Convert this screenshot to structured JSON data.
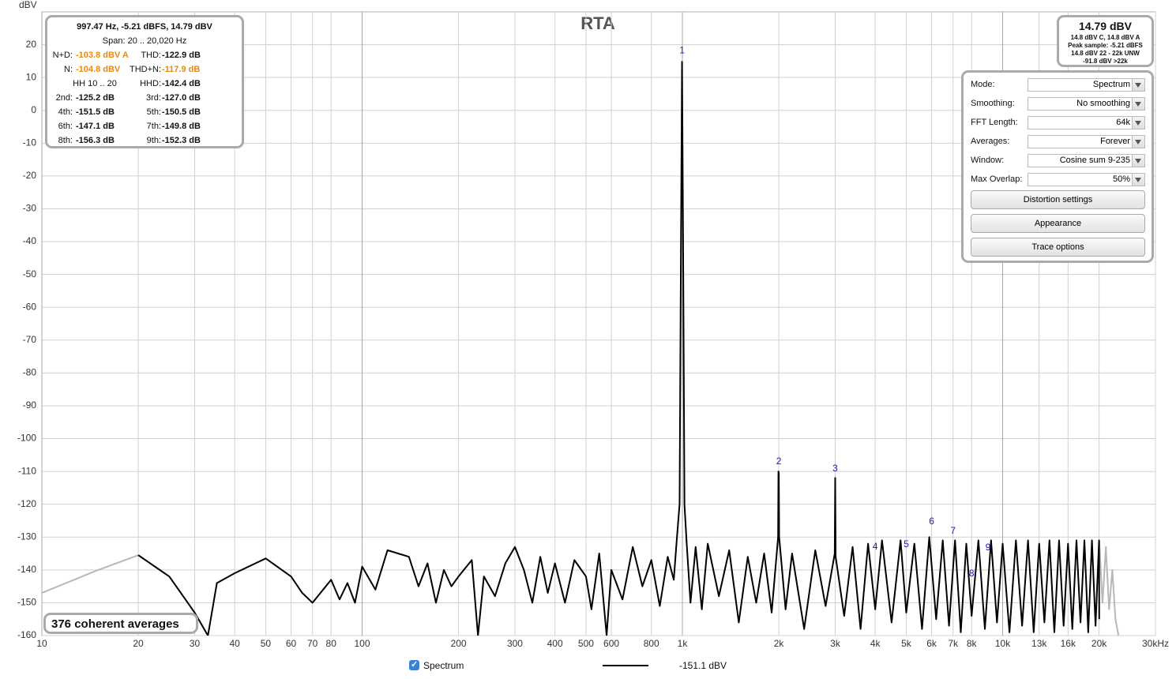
{
  "chart_data": {
    "type": "line",
    "title": "RTA",
    "y_label": "dBV",
    "xlim": [
      10,
      30000
    ],
    "ylim": [
      -160,
      30
    ],
    "log_x": true,
    "grid": true,
    "xticks": [
      10,
      20,
      30,
      40,
      50,
      60,
      70,
      80,
      100,
      200,
      300,
      400,
      500,
      600,
      800,
      {
        "value": 1000,
        "label": "1k"
      },
      {
        "value": 2000,
        "label": "2k"
      },
      {
        "value": 3000,
        "label": "3k"
      },
      {
        "value": 4000,
        "label": "4k"
      },
      {
        "value": 5000,
        "label": "5k"
      },
      {
        "value": 6000,
        "label": "6k"
      },
      {
        "value": 7000,
        "label": "7k"
      },
      {
        "value": 8000,
        "label": "8k"
      },
      {
        "value": 10000,
        "label": "10k"
      },
      {
        "value": 13000,
        "label": "13k"
      },
      {
        "value": 16000,
        "label": "16k"
      },
      {
        "value": 20000,
        "label": "20k"
      },
      {
        "value": 30000,
        "label": "30kHz"
      }
    ],
    "yticks": [
      20,
      10,
      0,
      -10,
      -20,
      -30,
      -40,
      -50,
      -60,
      -70,
      -80,
      -90,
      -100,
      -110,
      -120,
      -130,
      -140,
      -150,
      -160
    ],
    "series": [
      {
        "name": "Spectrum",
        "color": "#000000",
        "x": [
          20,
          25,
          30,
          33,
          35.2,
          40,
          50,
          60,
          65,
          70,
          80,
          85,
          90,
          95,
          100,
          110,
          120,
          140,
          150,
          160,
          170,
          180,
          190,
          200,
          220,
          230,
          240,
          260,
          280,
          300,
          320,
          340,
          360,
          380,
          400,
          430,
          460,
          500,
          520,
          550,
          580,
          600,
          650,
          700,
          750,
          800,
          850,
          900,
          940,
          960,
          980,
          990,
          997.47,
          1005,
          1015,
          1030,
          1060,
          1100,
          1150,
          1200,
          1300,
          1400,
          1500,
          1600,
          1700,
          1800,
          1900,
          1990,
          1995,
          2000,
          2005,
          2100,
          2200,
          2400,
          2600,
          2800,
          2990,
          3000,
          3010,
          3200,
          3400,
          3600,
          3800,
          4000,
          4200,
          4500,
          4800,
          5000,
          5300,
          5600,
          5900,
          6200,
          6500,
          6800,
          7100,
          7400,
          7700,
          8000,
          8400,
          8800,
          9200,
          9600,
          10000,
          10500,
          11000,
          11500,
          12000,
          12500,
          13000,
          13500,
          14000,
          14500,
          15000,
          15500,
          16000,
          16500,
          17000,
          17500,
          18000,
          18500,
          19000,
          19500,
          20000,
          20020
        ],
        "values": [
          -135.5,
          -142,
          -153,
          -160,
          -144,
          -141,
          -136.5,
          -142,
          -147,
          -150,
          -143,
          -149,
          -144,
          -150,
          -139,
          -146,
          -134,
          -136,
          -145,
          -138,
          -150,
          -140,
          -145,
          -142,
          -137,
          -160,
          -142,
          -148,
          -138,
          -133,
          -140,
          -150,
          -136,
          -147,
          -138,
          -150,
          -137,
          -142,
          -152,
          -135,
          -160,
          -140,
          -149,
          -133,
          -145,
          -137,
          -151,
          -136,
          -143,
          -131,
          -120,
          -40,
          14.79,
          -40,
          -120,
          -131,
          -150,
          -133,
          -152,
          -132,
          -148,
          -134,
          -156,
          -136,
          -150,
          -135,
          -153,
          -130,
          -110,
          -110.5,
          -130,
          -152,
          -135,
          -158,
          -134,
          -151,
          -135,
          -112,
          -136,
          -154,
          -133,
          -158,
          -132,
          -152,
          -131,
          -156,
          -131,
          -153,
          -132,
          -158,
          -130,
          -155,
          -131,
          -157,
          -131,
          -159,
          -132,
          -154,
          -131,
          -158,
          -131,
          -156,
          -132,
          -159,
          -131,
          -157,
          -131,
          -159,
          -132,
          -156,
          -131,
          -159,
          -131,
          -157,
          -132,
          -158,
          -131,
          -156,
          -131,
          -159,
          -131,
          -157,
          -131,
          -155
        ]
      },
      {
        "color": "#b8b8b8",
        "x": [
          10,
          15,
          20,
          20000,
          20020,
          20500,
          21000,
          21500,
          22000,
          22500,
          23000
        ],
        "values": [
          -147,
          -140,
          -135.5,
          null,
          -131,
          -150,
          -133,
          -152,
          -140,
          -155,
          -160
        ]
      }
    ],
    "harmonic_markers": {
      "labels": [
        "1",
        "2",
        "3",
        "4",
        "5",
        "6",
        "7",
        "8",
        "9"
      ],
      "x": [
        997.47,
        2000,
        3000,
        4000,
        5000,
        6000,
        7000,
        8000,
        9000
      ],
      "y": [
        18.1,
        -107,
        -109.2,
        -133,
        -132.3,
        -125.3,
        -128.2,
        -141.2,
        -133.3
      ]
    },
    "averages_note": "376 coherent averages",
    "cursor_readout": "-151.1 dBV"
  },
  "info_panel": {
    "header": "997.47 Hz, -5.21 dBFS, 14.79 dBV",
    "span": "Span: 20 .. 20,020 Hz",
    "rows": [
      [
        "N+D:",
        "-103.8 dBV A",
        "THD:",
        "-122.9 dB"
      ],
      [
        "N:",
        "-104.8 dBV",
        "THD+N:",
        "-117.9 dB"
      ],
      [
        "HH 10 .. 20",
        "HHD:",
        "-142.4 dB"
      ],
      [
        "2nd:",
        "-125.2 dB",
        "3rd:",
        "-127.0 dB"
      ],
      [
        "4th:",
        "-151.5 dB",
        "5th:",
        "-150.5 dB"
      ],
      [
        "6th:",
        "-147.1 dB",
        "7th:",
        "-149.8 dB"
      ],
      [
        "8th:",
        "-156.3 dB",
        "9th:",
        "-152.3 dB"
      ]
    ]
  },
  "level_panel": {
    "main": "14.79 dBV",
    "lines": [
      "14.8 dBV C, 14.8 dBV A",
      "Peak sample: -5.21 dBFS",
      "14.8 dBV 22 - 22k UNW",
      "-91.8 dBV >22k"
    ]
  },
  "controls": {
    "fields": [
      [
        "Mode:",
        "Spectrum"
      ],
      [
        "Smoothing:",
        "No  smoothing"
      ],
      [
        "FFT Length:",
        "64k"
      ],
      [
        "Averages:",
        "Forever"
      ],
      [
        "Window:",
        "Cosine sum 9-235"
      ],
      [
        "Max Overlap:",
        "50%"
      ]
    ],
    "buttons": [
      "Distortion settings",
      "Appearance",
      "Trace options"
    ]
  }
}
